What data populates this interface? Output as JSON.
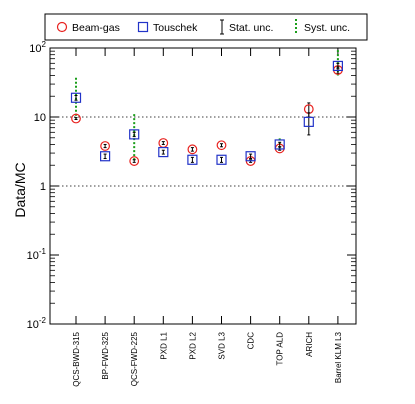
{
  "chart_data": {
    "type": "scatter",
    "ylabel": "Data/MC",
    "yscale": "log",
    "ylim": [
      0.01,
      100
    ],
    "grid": "horizontal dotted lines at 1, 10, 100",
    "legend_placement": "top",
    "y_ticks": [
      {
        "base": "10",
        "exp": "-2"
      },
      {
        "base": "10",
        "exp": "-1"
      },
      {
        "base": "1",
        "exp": ""
      },
      {
        "base": "10",
        "exp": ""
      },
      {
        "base": "10",
        "exp": "2"
      }
    ],
    "categories": [
      "QCS-BWD-315",
      "BP-FWD-325",
      "QCS-FWD-225",
      "PXD L1",
      "PXD L2",
      "SVD L3",
      "CDC",
      "TOP ALD",
      "ARICH",
      "Barrel KLM L3"
    ],
    "series": [
      {
        "name": "Beam-gas",
        "marker": "circle",
        "color": "#e8221f",
        "values": [
          9.5,
          3.8,
          2.3,
          4.2,
          3.4,
          3.9,
          2.3,
          3.5,
          13,
          48
        ],
        "stat_unc": [
          0.3,
          0.2,
          0.1,
          0.2,
          0.2,
          0.2,
          0.1,
          0.2,
          3,
          5
        ],
        "syst_unc": [
          null,
          null,
          null,
          null,
          null,
          null,
          null,
          null,
          null,
          null
        ]
      },
      {
        "name": "Touschek",
        "marker": "square",
        "color": "#2233c8",
        "values": [
          19,
          2.7,
          5.6,
          3.1,
          2.4,
          2.4,
          2.7,
          4.0,
          8.5,
          55
        ],
        "stat_unc": [
          1.5,
          0.2,
          0.4,
          0.2,
          0.2,
          0.2,
          0.2,
          0.3,
          3,
          5
        ],
        "syst_unc": [
          [
            9.5,
            37
          ],
          null,
          [
            2.3,
            11
          ],
          null,
          null,
          null,
          null,
          [
            3.5,
            4.9
          ],
          null,
          [
            40,
            93
          ]
        ]
      }
    ],
    "legend": [
      {
        "label": "Beam-gas",
        "symbol": "circle"
      },
      {
        "label": "Touschek",
        "symbol": "square"
      },
      {
        "label": "Stat. unc.",
        "symbol": "errorbar"
      },
      {
        "label": "Syst. unc.",
        "symbol": "dashed-errorbar"
      }
    ],
    "colors": {
      "beam_gas": "#e8221f",
      "touschek": "#2233c8",
      "stat_unc": "#000000",
      "syst_unc": "#1a9e1a"
    }
  }
}
